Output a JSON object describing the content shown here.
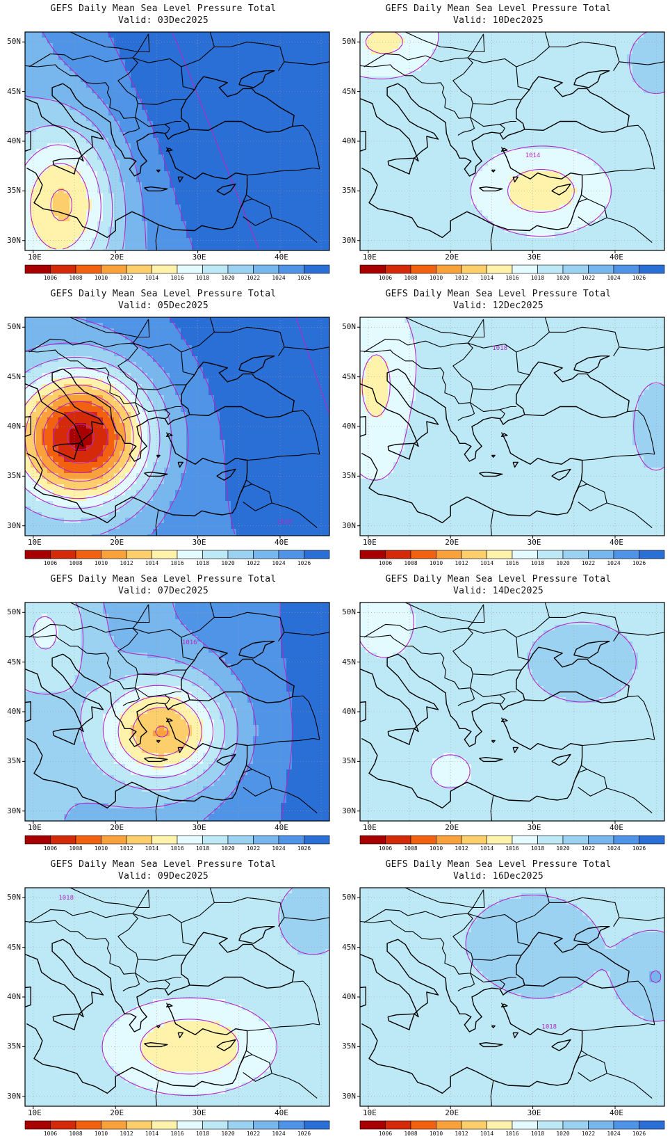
{
  "figure_title": "GEFS Daily Mean Sea Level Pressure Total",
  "variable": "Mean Sea Level Pressure",
  "panels": [
    {
      "title": "GEFS Daily Mean Sea Level Pressure Total",
      "valid": "Valid: 03Dec2025",
      "contour_label": "",
      "col": 0,
      "row": 0
    },
    {
      "title": "GEFS Daily Mean Sea Level Pressure Total",
      "valid": "Valid: 10Dec2025",
      "contour_label": "1014",
      "col": 1,
      "row": 0
    },
    {
      "title": "GEFS Daily Mean Sea Level Pressure Total",
      "valid": "Valid: 05Dec2025",
      "contour_label": "1018",
      "col": 0,
      "row": 1
    },
    {
      "title": "GEFS Daily Mean Sea Level Pressure Total",
      "valid": "Valid: 12Dec2025",
      "contour_label": "1018",
      "col": 1,
      "row": 1
    },
    {
      "title": "GEFS Daily Mean Sea Level Pressure Total",
      "valid": "Valid: 07Dec2025",
      "contour_label": "1016",
      "col": 0,
      "row": 2
    },
    {
      "title": "GEFS Daily Mean Sea Level Pressure Total",
      "valid": "Valid: 14Dec2025",
      "contour_label": "",
      "col": 1,
      "row": 2
    },
    {
      "title": "GEFS Daily Mean Sea Level Pressure Total",
      "valid": "Valid: 09Dec2025",
      "contour_label": "1018",
      "col": 0,
      "row": 3
    },
    {
      "title": "GEFS Daily Mean Sea Level Pressure Total",
      "valid": "Valid: 16Dec2025",
      "contour_label": "1018",
      "col": 1,
      "row": 3
    }
  ],
  "axes": {
    "lat_labels": [
      "50N",
      "45N",
      "40N",
      "35N",
      "30N"
    ],
    "lon_labels": [
      "10E",
      "20E",
      "30E",
      "40E"
    ]
  },
  "colorbar": {
    "labels": [
      "1006",
      "1008",
      "1010",
      "1012",
      "1014",
      "1016",
      "1018",
      "1020",
      "1022",
      "1024",
      "1026"
    ],
    "colors": [
      "#a80000",
      "#d42a0a",
      "#f26110",
      "#f9a23c",
      "#fccf6c",
      "#fff3ac",
      "#e3faff",
      "#bde9f6",
      "#9bd2f2",
      "#78b6ee",
      "#4f94e6",
      "#2a6fd6"
    ]
  },
  "colors": {
    "contour": "#b427c4",
    "coast": "#000000",
    "grid": "#9a9a9a"
  }
}
